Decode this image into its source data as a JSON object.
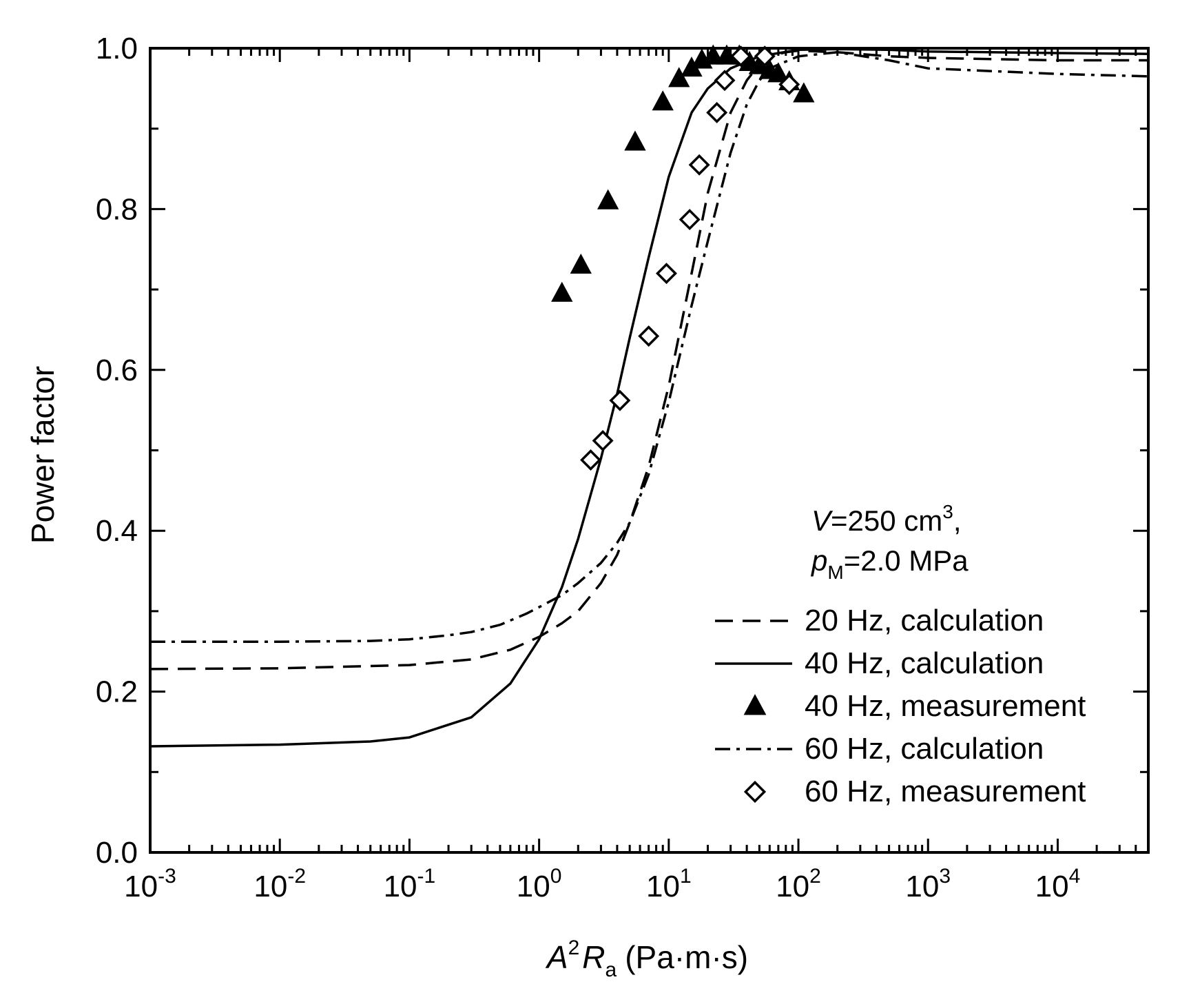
{
  "chart_data": {
    "type": "line",
    "title": "",
    "xlabel": {
      "base": "A",
      "exp": "2",
      "main": "R",
      "sub": "a",
      "unit": "(Pa·m·s)"
    },
    "ylabel": "Power factor",
    "x_scale": "log",
    "xlim": [
      0.001,
      50000
    ],
    "ylim": [
      0.0,
      1.0
    ],
    "x_ticks": [
      {
        "base": "10",
        "exp": "-3",
        "value": 0.001
      },
      {
        "base": "10",
        "exp": "-2",
        "value": 0.01
      },
      {
        "base": "10",
        "exp": "-1",
        "value": 0.1
      },
      {
        "base": "10",
        "exp": "0",
        "value": 1
      },
      {
        "base": "10",
        "exp": "1",
        "value": 10
      },
      {
        "base": "10",
        "exp": "2",
        "value": 100
      },
      {
        "base": "10",
        "exp": "3",
        "value": 1000
      },
      {
        "base": "10",
        "exp": "4",
        "value": 10000
      }
    ],
    "y_ticks": [
      "0.0",
      "0.2",
      "0.4",
      "0.6",
      "0.8",
      "1.0"
    ],
    "annotation": {
      "line1": {
        "var": "V",
        "text": "=250 cm",
        "sup": "3",
        "tail": ","
      },
      "line2": {
        "var": "p",
        "sub": "M",
        "text": "=2.0 MPa"
      }
    },
    "legend_position": "bottom-right",
    "series": [
      {
        "name": "20 Hz, calculation",
        "kind": "line",
        "style": "dashed",
        "x": [
          0.001,
          0.01,
          0.1,
          0.3,
          0.6,
          1,
          1.5,
          2,
          3,
          4,
          5,
          7,
          10,
          15,
          20,
          30,
          40,
          50,
          60,
          80,
          100,
          200,
          500,
          1000,
          10000,
          50000
        ],
        "y": [
          0.228,
          0.229,
          0.233,
          0.24,
          0.252,
          0.268,
          0.285,
          0.3,
          0.335,
          0.37,
          0.41,
          0.48,
          0.58,
          0.72,
          0.82,
          0.92,
          0.96,
          0.98,
          0.99,
          0.995,
          0.997,
          0.995,
          0.99,
          0.988,
          0.985,
          0.985
        ]
      },
      {
        "name": "40 Hz, calculation",
        "kind": "line",
        "style": "solid",
        "x": [
          0.001,
          0.01,
          0.05,
          0.1,
          0.3,
          0.6,
          1,
          1.5,
          2,
          3,
          4,
          5,
          7,
          10,
          15,
          20,
          30,
          50,
          100,
          200,
          500,
          1000,
          10000,
          50000
        ],
        "y": [
          0.132,
          0.134,
          0.138,
          0.143,
          0.168,
          0.21,
          0.265,
          0.33,
          0.39,
          0.49,
          0.57,
          0.64,
          0.74,
          0.84,
          0.92,
          0.95,
          0.975,
          0.99,
          0.998,
          0.999,
          0.998,
          0.996,
          0.994,
          0.993
        ]
      },
      {
        "name": "40 Hz, measurement",
        "kind": "scatter",
        "marker": "triangle",
        "x": [
          1.5,
          2.1,
          3.4,
          5.5,
          9,
          12,
          15,
          18,
          22,
          28,
          35,
          42,
          50,
          60,
          70,
          85,
          110
        ],
        "y": [
          0.695,
          0.73,
          0.81,
          0.883,
          0.933,
          0.962,
          0.975,
          0.985,
          0.99,
          0.99,
          0.99,
          0.982,
          0.978,
          0.972,
          0.968,
          0.958,
          0.943
        ]
      },
      {
        "name": "60 Hz, calculation",
        "kind": "line",
        "style": "dashdot",
        "x": [
          0.001,
          0.01,
          0.05,
          0.1,
          0.2,
          0.3,
          0.5,
          0.8,
          1,
          1.5,
          2,
          3,
          4,
          5,
          7,
          10,
          15,
          20,
          30,
          40,
          50,
          60,
          100,
          200,
          500,
          1000,
          10000,
          50000
        ],
        "y": [
          0.262,
          0.262,
          0.263,
          0.265,
          0.27,
          0.274,
          0.283,
          0.297,
          0.305,
          0.32,
          0.335,
          0.36,
          0.385,
          0.41,
          0.47,
          0.56,
          0.68,
          0.76,
          0.87,
          0.93,
          0.96,
          0.975,
          0.99,
          0.995,
          0.985,
          0.975,
          0.968,
          0.965
        ]
      },
      {
        "name": "60 Hz, measurement",
        "kind": "scatter",
        "marker": "diamond",
        "x": [
          2.5,
          3.1,
          4.2,
          7,
          9.6,
          14.5,
          17.2,
          23.5,
          27,
          36,
          55,
          85
        ],
        "y": [
          0.488,
          0.512,
          0.562,
          0.642,
          0.72,
          0.787,
          0.855,
          0.92,
          0.96,
          0.99,
          0.99,
          0.955
        ]
      }
    ]
  }
}
